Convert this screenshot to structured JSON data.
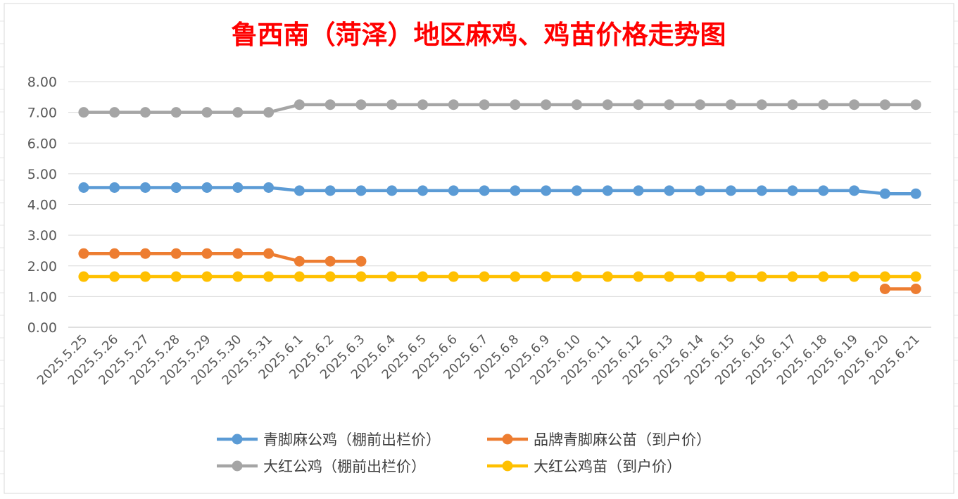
{
  "chart_data": {
    "type": "line",
    "title": "鲁西南（菏泽）地区麻鸡、鸡苗价格走势图",
    "xlabel": "",
    "ylabel": "",
    "ylim": [
      0,
      8
    ],
    "yticks": [
      "0.00",
      "1.00",
      "2.00",
      "3.00",
      "4.00",
      "5.00",
      "6.00",
      "7.00",
      "8.00"
    ],
    "grid": true,
    "legend_position": "bottom",
    "categories": [
      "2025.5.25",
      "2025.5.26",
      "2025.5.27",
      "2025.5.28",
      "2025.5.29",
      "2025.5.30",
      "2025.5.31",
      "2025.6.1",
      "2025.6.2",
      "2025.6.3",
      "2025.6.4",
      "2025.6.5",
      "2025.6.6",
      "2025.6.7",
      "2025.6.8",
      "2025.6.9",
      "2025.6.10",
      "2025.6.11",
      "2025.6.12",
      "2025.6.13",
      "2025.6.14",
      "2025.6.15",
      "2025.6.16",
      "2025.6.17",
      "2025.6.18",
      "2025.6.19",
      "2025.6.20",
      "2025.6.21"
    ],
    "series": [
      {
        "name": "青脚麻公鸡（棚前出栏价）",
        "color": "#5b9bd5",
        "values": [
          4.55,
          4.55,
          4.55,
          4.55,
          4.55,
          4.55,
          4.55,
          4.45,
          4.45,
          4.45,
          4.45,
          4.45,
          4.45,
          4.45,
          4.45,
          4.45,
          4.45,
          4.45,
          4.45,
          4.45,
          4.45,
          4.45,
          4.45,
          4.45,
          4.45,
          4.45,
          4.35,
          4.35
        ]
      },
      {
        "name": "品牌青脚麻公苗（到户价）",
        "color": "#ed7d31",
        "values": [
          2.4,
          2.4,
          2.4,
          2.4,
          2.4,
          2.4,
          2.4,
          2.15,
          2.15,
          2.15,
          null,
          null,
          null,
          null,
          null,
          null,
          null,
          null,
          null,
          null,
          null,
          null,
          null,
          null,
          null,
          null,
          1.25,
          1.25
        ]
      },
      {
        "name": "大红公鸡（棚前出栏价）",
        "color": "#a5a5a5",
        "values": [
          7.0,
          7.0,
          7.0,
          7.0,
          7.0,
          7.0,
          7.0,
          7.25,
          7.25,
          7.25,
          7.25,
          7.25,
          7.25,
          7.25,
          7.25,
          7.25,
          7.25,
          7.25,
          7.25,
          7.25,
          7.25,
          7.25,
          7.25,
          7.25,
          7.25,
          7.25,
          7.25,
          7.25
        ]
      },
      {
        "name": "大红公鸡苗（到户价）",
        "color": "#ffc000",
        "values": [
          1.65,
          1.65,
          1.65,
          1.65,
          1.65,
          1.65,
          1.65,
          1.65,
          1.65,
          1.65,
          1.65,
          1.65,
          1.65,
          1.65,
          1.65,
          1.65,
          1.65,
          1.65,
          1.65,
          1.65,
          1.65,
          1.65,
          1.65,
          1.65,
          1.65,
          1.65,
          1.65,
          1.65
        ]
      }
    ],
    "legend_order": [
      0,
      1,
      2,
      3
    ],
    "colors": {
      "title": "#ff0000",
      "axis_text": "#595959",
      "grid": "#d9d9d9",
      "legend_text": "#404040"
    }
  }
}
